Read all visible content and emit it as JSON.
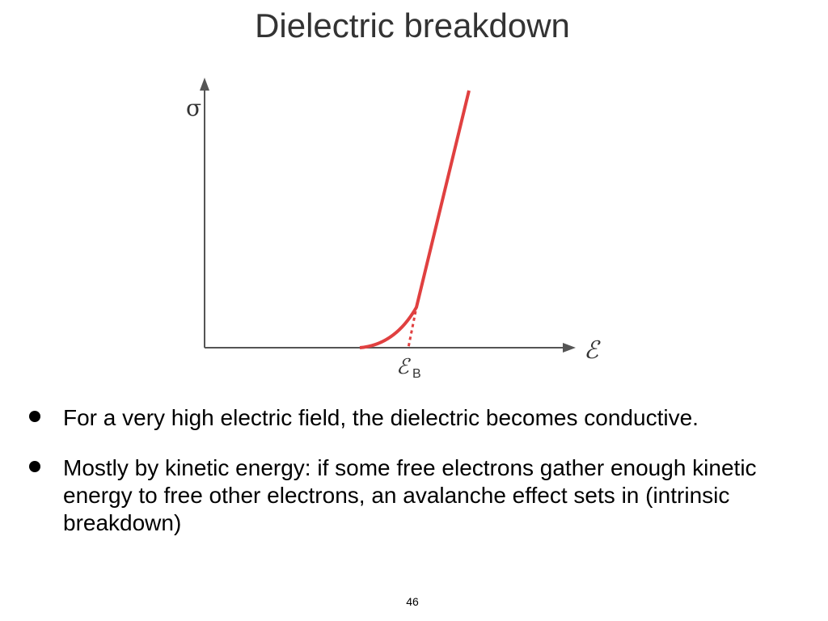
{
  "title": "Dielectric breakdown",
  "figure": {
    "y_label": "σ",
    "x_label": "ℰ",
    "marker_label": "ℰ",
    "marker_subscript": "B"
  },
  "bullets": [
    "For a very high electric field, the dielectric becomes conductive.",
    "Mostly by kinetic energy: if some free electrons gather enough kinetic energy to free other electrons, an avalanche effect sets in (intrinsic breakdown)"
  ],
  "page_number": "46"
}
